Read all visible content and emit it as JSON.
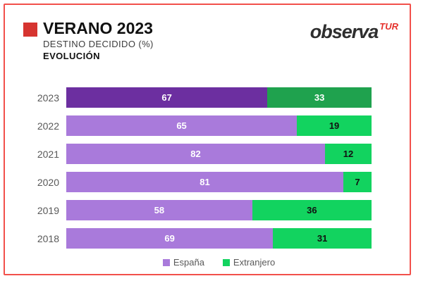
{
  "frame": {
    "border_color": "#F2504B"
  },
  "header": {
    "title": "VERANO 2023",
    "subtitle": "DESTINO DECIDIDO (%)",
    "section": "EVOLUCIÓN",
    "accent_color": "#D63430",
    "logo_text": "observa",
    "logo_suffix": "TUR",
    "logo_suffix_color": "#E5322D"
  },
  "chart_data": {
    "type": "bar",
    "orientation": "horizontal_stacked_normalized",
    "title": "VERANO 2023 — DESTINO DECIDIDO (%) — EVOLUCIÓN",
    "categories": [
      "2023",
      "2022",
      "2021",
      "2020",
      "2019",
      "2018"
    ],
    "series": [
      {
        "name": "España",
        "values": [
          67,
          65,
          82,
          81,
          58,
          69
        ],
        "color": "#A97ADB",
        "highlight_color": "#6C2FA0",
        "value_label_color": "#FFFFFF"
      },
      {
        "name": "Extranjero",
        "values": [
          33,
          19,
          12,
          7,
          36,
          31
        ],
        "color": "#12D35F",
        "highlight_color": "#1FA24E",
        "value_label_color": "#111111",
        "highlight_value_label_color": "#FFFFFF"
      }
    ],
    "highlighted_category": "2023",
    "legend": {
      "position": "bottom-center",
      "entries": [
        "España",
        "Extranjero"
      ]
    }
  }
}
